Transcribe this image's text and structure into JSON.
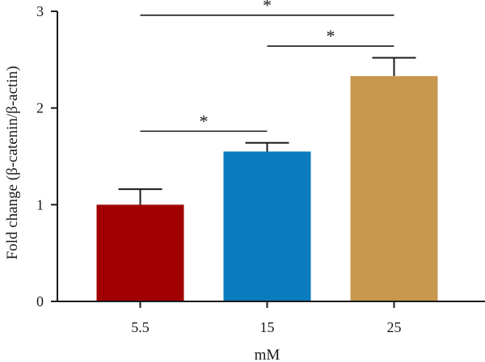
{
  "chart_data": {
    "type": "bar",
    "categories": [
      "5.5",
      "15",
      "25"
    ],
    "values": [
      1.0,
      1.55,
      2.33
    ],
    "errors_upper": [
      0.16,
      0.09,
      0.19
    ],
    "colors": [
      "#a10000",
      "#0a7bbd",
      "#c7974d"
    ],
    "xlabel": "mM",
    "ylabel": "Fold change (β-catenin/β-actin)",
    "ylim": [
      0,
      3
    ],
    "yticks": [
      0,
      1,
      2,
      3
    ],
    "grid": false,
    "significance": [
      {
        "from": 0,
        "to": 1,
        "y": 1.76,
        "label": "*"
      },
      {
        "from": 1,
        "to": 2,
        "y": 2.64,
        "label": "*"
      },
      {
        "from": 0,
        "to": 2,
        "y": 2.96,
        "label": "*"
      }
    ]
  }
}
